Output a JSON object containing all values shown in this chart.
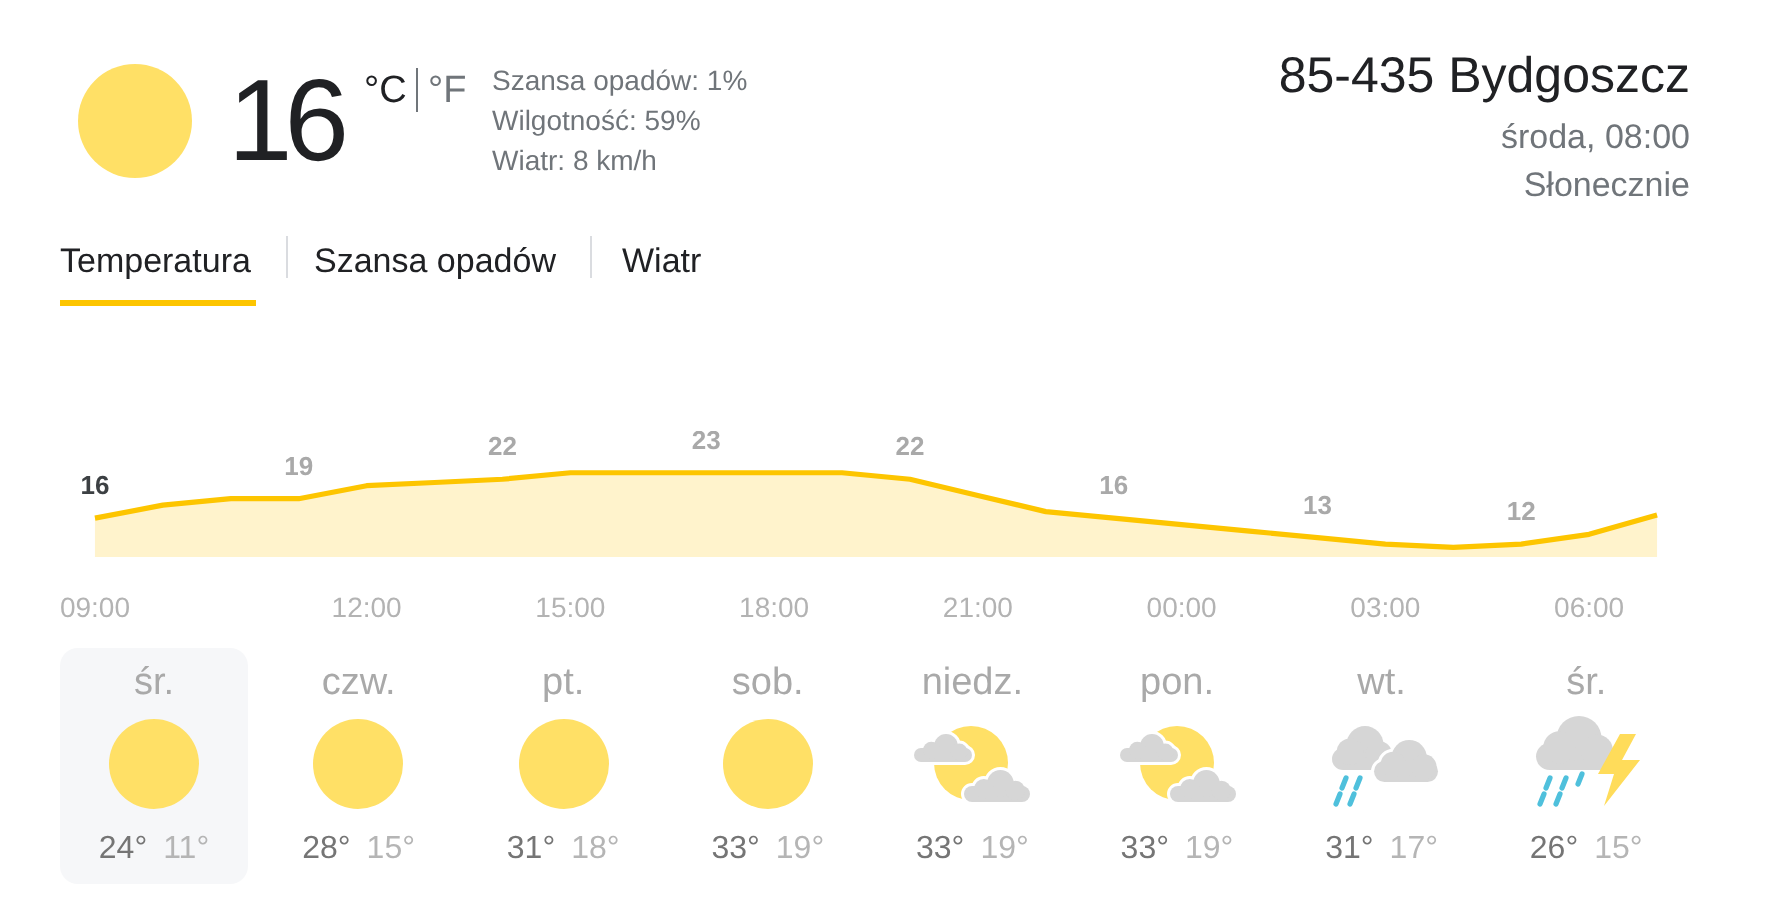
{
  "chart_data": [
    {
      "type": "other",
      "annotations": [
        "16",
        "°C",
        "°F",
        "Szansa opadów: 1%",
        "Wilgotność: 59%",
        "Wiatr: 8 km/h",
        "85-435 Bydgoszcz",
        "środa, 08:00",
        "Słonecznie"
      ]
    },
    {
      "type": "area",
      "title": "Temperatura",
      "annotations": [
        "Szansa opadów",
        "Wiatr"
      ],
      "categories": [
        "09:00",
        null,
        null,
        null,
        "12:00",
        null,
        null,
        "15:00",
        null,
        null,
        "18:00",
        null,
        null,
        "21:00",
        null,
        null,
        "00:00",
        null,
        null,
        "03:00",
        null,
        null,
        "06:00",
        null
      ],
      "values": [
        16,
        18,
        19,
        19,
        21,
        21.5,
        22,
        23,
        23,
        23,
        23,
        23,
        22,
        19.5,
        17,
        16,
        15,
        14,
        13,
        12,
        11.5,
        12,
        13.5,
        16.5
      ],
      "value_labels": [
        "16",
        null,
        null,
        "19",
        null,
        null,
        "22",
        null,
        null,
        "23",
        null,
        null,
        "22",
        null,
        null,
        "16",
        null,
        null,
        "13",
        null,
        null,
        "12",
        null,
        null
      ],
      "color": "#fdc500",
      "tick_labels": "x"
    },
    {
      "type": "other",
      "categories": [
        "śr.",
        "czw.",
        "pt.",
        "sob.",
        "niedz.",
        "pon.",
        "wt.",
        "śr."
      ],
      "annotations": [
        "24°",
        "11°",
        "28°",
        "15°",
        "31°",
        "18°",
        "33°",
        "19°",
        "33°",
        "19°",
        "33°",
        "19°",
        "31°",
        "17°",
        "26°",
        "15°"
      ]
    }
  ]
}
